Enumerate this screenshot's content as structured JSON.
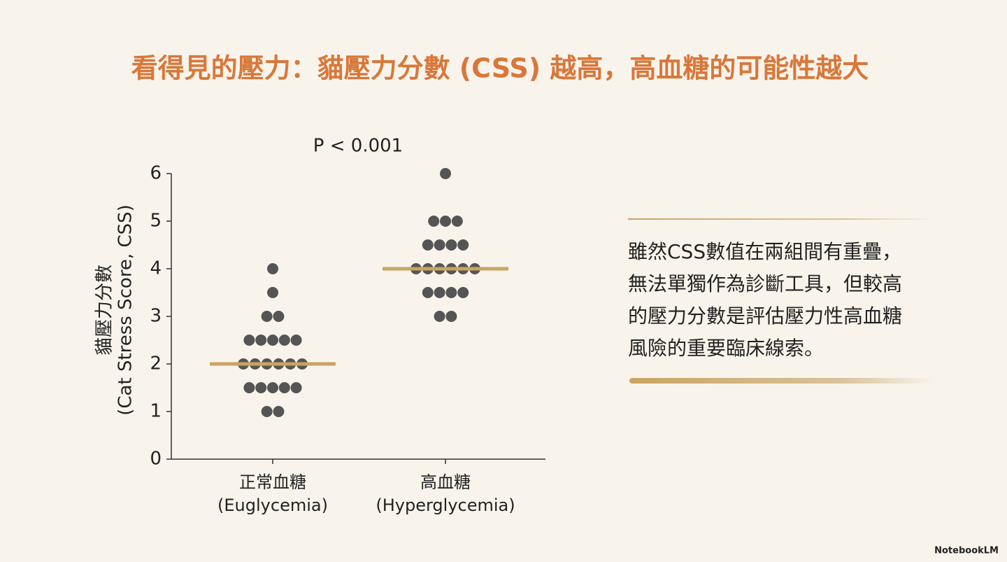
{
  "chart_data": {
    "type": "strip",
    "title": "看得見的壓力：貓壓力分數 (CSS) 越高，高血糖的可能性越大",
    "annotation": "P < 0.001",
    "ylabel": [
      "貓壓力分數",
      "(Cat Stress Score, CSS)"
    ],
    "categories": [
      [
        "正常血糖",
        "(Euglycemia)"
      ],
      [
        "高血糖",
        "(Hyperglycemia)"
      ]
    ],
    "series": [
      {
        "color": "#555555",
        "values": [
          4,
          3.5,
          3,
          3,
          2.5,
          2.5,
          2.5,
          2.5,
          2.5,
          2,
          2,
          2,
          2,
          2,
          2,
          1.5,
          1.5,
          1.5,
          1.5,
          1.5,
          1,
          1
        ]
      },
      {
        "color": "#555555",
        "values": [
          6,
          5,
          5,
          5,
          4.5,
          4.5,
          4.5,
          4.5,
          4,
          4,
          4,
          4,
          4,
          4,
          3.5,
          3.5,
          3.5,
          3.5,
          3,
          3
        ]
      }
    ],
    "medians": [
      2,
      4
    ],
    "median_color": "#c9a463",
    "ylim": [
      0,
      6
    ],
    "yticks": [
      0,
      1,
      2,
      3,
      4,
      5,
      6
    ]
  },
  "note": [
    "雖然CSS數值在兩組間有重疊，",
    "無法單獨作為診斷工具，但較高",
    "的壓力分數是評估壓力性高血糖",
    "風險的重要臨床線索。"
  ],
  "brand": "NotebookLM"
}
